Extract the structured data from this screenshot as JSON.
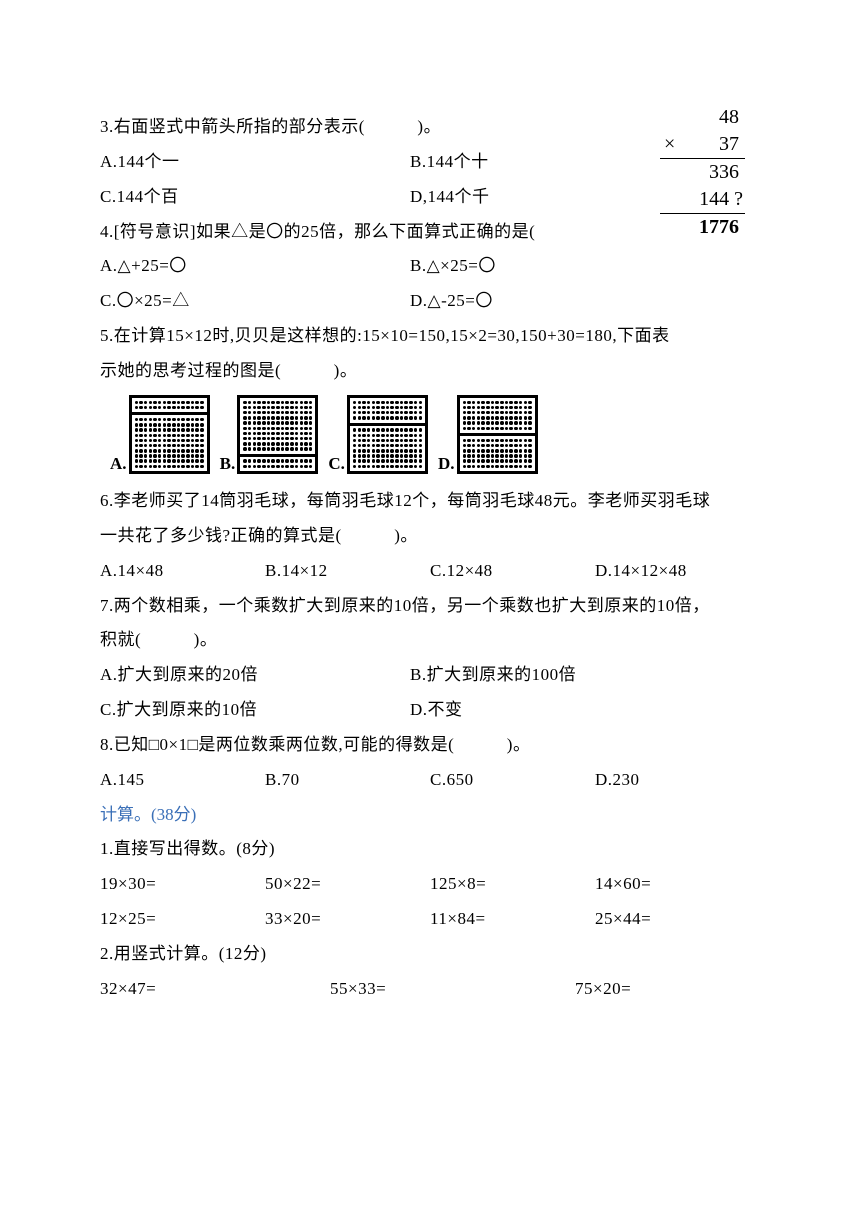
{
  "longmath": {
    "n1": "48",
    "op": "×",
    "n2": "37",
    "p1": "336",
    "p2": "144 ?",
    "result": "1776"
  },
  "q3": {
    "stem": "3.右面竖式中箭头所指的部分表示(　　　)。",
    "a": "A.144个一",
    "b": "B.144个十",
    "c": "C.144个百",
    "d": "D,144个千"
  },
  "q4": {
    "stem": "4.[符号意识]如果△是〇的25倍，那么下面算式正确的是(",
    "a": "A.△+25=〇",
    "b": "B.△×25=〇",
    "c": "C.〇×25=△",
    "d": "D.△-25=〇"
  },
  "q5": {
    "stem1": "5.在计算15×12时,贝贝是这样想的:15×10=150,15×2=30,150+30=180,下面表",
    "stem2": "示她的思考过程的图是(　　　)。",
    "labels": {
      "a": "A.",
      "b": "B.",
      "c": "C.",
      "d": "D."
    },
    "diagrams": {
      "cols": 15,
      "a_split": [
        2,
        10
      ],
      "b_split": [
        10,
        2
      ],
      "c_split": [
        4,
        8
      ],
      "d_split": [
        6,
        6
      ]
    }
  },
  "q6": {
    "stem1": "6.李老师买了14筒羽毛球，每筒羽毛球12个，每筒羽毛球48元。李老师买羽毛球",
    "stem2": "一共花了多少钱?正确的算式是(　　　)。",
    "a": "A.14×48",
    "b": "B.14×12",
    "c": "C.12×48",
    "d": "D.14×12×48"
  },
  "q7": {
    "stem1": "7.两个数相乘，一个乘数扩大到原来的10倍，另一个乘数也扩大到原来的10倍，",
    "stem2": "积就(　　　)。",
    "a": "A.扩大到原来的20倍",
    "b": "B.扩大到原来的100倍",
    "c": "C.扩大到原来的10倍",
    "d": "D.不变"
  },
  "q8": {
    "stem": "8.已知□0×1□是两位数乘两位数,可能的得数是(　　　)。",
    "a": "A.145",
    "b": "B.70",
    "c": "C.650",
    "d": "D.230"
  },
  "section": "计算。(38分)",
  "calc1": {
    "stem": "1.直接写出得数。(8分)",
    "row1": {
      "a": "19×30=",
      "b": "50×22=",
      "c": "125×8=",
      "d": "14×60="
    },
    "row2": {
      "a": "12×25=",
      "b": "33×20=",
      "c": "11×84=",
      "d": "25×44="
    }
  },
  "calc2": {
    "stem": "2.用竖式计算。(12分)",
    "row": {
      "a": "32×47=",
      "b": "55×33=",
      "c": "75×20="
    }
  }
}
